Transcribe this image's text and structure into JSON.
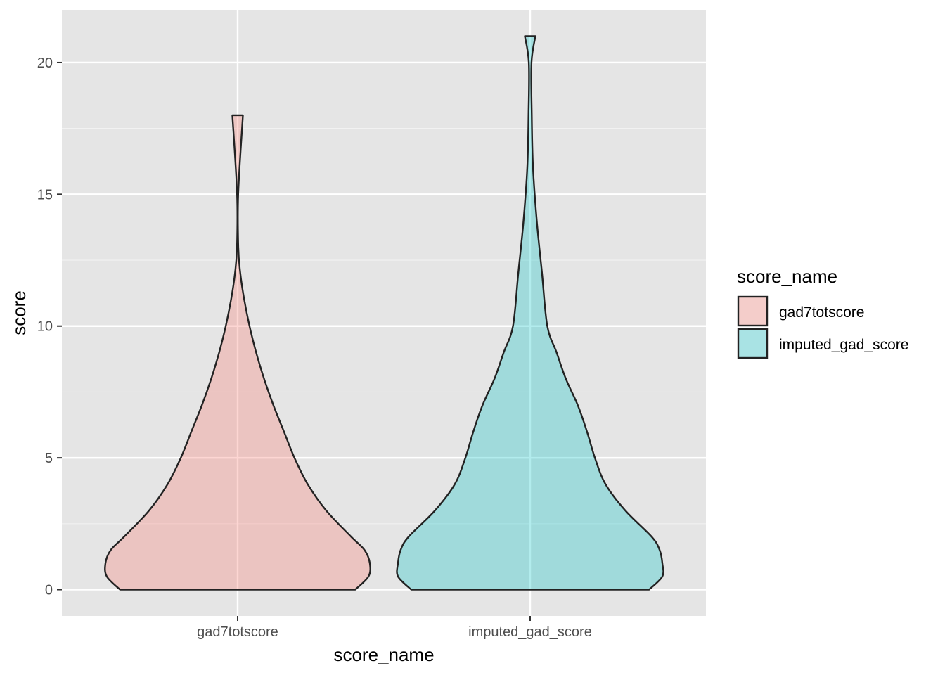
{
  "chart_data": {
    "type": "violin",
    "xlabel": "score_name",
    "ylabel": "score",
    "categories": [
      "gad7totscore",
      "imputed_gad_score"
    ],
    "ylim": [
      -1,
      22
    ],
    "y_ticks": [
      0,
      5,
      10,
      15,
      20
    ],
    "y_tick_labels": [
      "0",
      "5",
      "10",
      "15",
      "20"
    ],
    "grid": true,
    "legend": {
      "title": "score_name",
      "position": "right",
      "entries": [
        "gad7totscore",
        "imputed_gad_score"
      ]
    },
    "series": [
      {
        "name": "gad7totscore",
        "color": "#F8766D",
        "y_min": 0,
        "y_max": 18,
        "density_profile": [
          [
            0,
            0.89
          ],
          [
            0.5,
            0.99
          ],
          [
            1,
            1.0
          ],
          [
            1.5,
            0.96
          ],
          [
            2,
            0.86
          ],
          [
            3,
            0.67
          ],
          [
            4,
            0.53
          ],
          [
            5,
            0.43
          ],
          [
            6,
            0.35
          ],
          [
            7,
            0.27
          ],
          [
            8,
            0.2
          ],
          [
            9,
            0.14
          ],
          [
            10,
            0.09
          ],
          [
            11,
            0.05
          ],
          [
            12,
            0.02
          ],
          [
            13,
            0.005
          ],
          [
            15,
            0.004
          ],
          [
            18,
            0.04
          ]
        ]
      },
      {
        "name": "imputed_gad_score",
        "color": "#00BFC4",
        "y_min": 0,
        "y_max": 21,
        "density_profile": [
          [
            0,
            0.9
          ],
          [
            0.5,
            1.0
          ],
          [
            1,
            1.0
          ],
          [
            1.5,
            0.98
          ],
          [
            2,
            0.92
          ],
          [
            3,
            0.72
          ],
          [
            4,
            0.57
          ],
          [
            5,
            0.49
          ],
          [
            6,
            0.43
          ],
          [
            7,
            0.36
          ],
          [
            8,
            0.27
          ],
          [
            9,
            0.2
          ],
          [
            10,
            0.13
          ],
          [
            12,
            0.09
          ],
          [
            14,
            0.05
          ],
          [
            16,
            0.022
          ],
          [
            18,
            0.012
          ],
          [
            20,
            0.01
          ],
          [
            21,
            0.04
          ]
        ]
      }
    ]
  }
}
